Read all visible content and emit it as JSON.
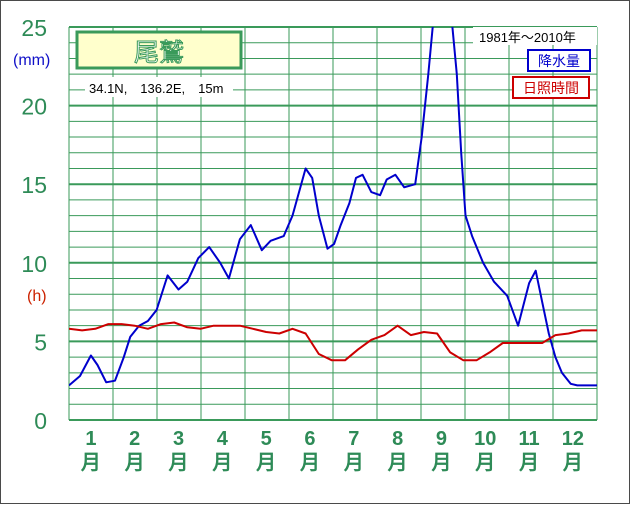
{
  "chart_data": {
    "type": "line",
    "title": "尾鷲",
    "coords_label": "34.1N,　136.2E,　15m",
    "period_label": "1981年～2010年",
    "y_units": {
      "precip": "(mm)",
      "sunshine": "(h)"
    },
    "ylim": [
      0,
      25
    ],
    "yticks": [
      "0",
      "5",
      "10",
      "15",
      "20",
      "25"
    ],
    "categories": [
      "1月",
      "2月",
      "3月",
      "4月",
      "5月",
      "6月",
      "7月",
      "8月",
      "9月",
      "10月",
      "11月",
      "12月"
    ],
    "month_numbers": [
      "1",
      "2",
      "3",
      "4",
      "5",
      "6",
      "7",
      "8",
      "9",
      "10",
      "11",
      "12"
    ],
    "month_char": "月",
    "x_range": [
      0.5,
      12.55
    ],
    "grid": true,
    "legend_position": "top-right",
    "series": [
      {
        "name": "降水量",
        "color": "#0000cc",
        "x": [
          0.5,
          0.75,
          1.0,
          1.15,
          1.35,
          1.55,
          1.75,
          1.9,
          2.1,
          2.3,
          2.5,
          2.75,
          3.0,
          3.2,
          3.45,
          3.7,
          3.95,
          4.15,
          4.4,
          4.65,
          4.9,
          5.1,
          5.4,
          5.6,
          5.9,
          6.05,
          6.2,
          6.4,
          6.55,
          6.7,
          6.9,
          7.05,
          7.2,
          7.4,
          7.6,
          7.75,
          7.95,
          8.15,
          8.4,
          8.55,
          8.7,
          8.8,
          8.9,
          9.0,
          9.15,
          9.25,
          9.35,
          9.45,
          9.55,
          9.7,
          9.95,
          10.2,
          10.5,
          10.75,
          11.0,
          11.15,
          11.3,
          11.45,
          11.6,
          11.75,
          11.95,
          12.1,
          12.3,
          12.55
        ],
        "values": [
          2.2,
          2.8,
          4.1,
          3.5,
          2.4,
          2.5,
          4.0,
          5.3,
          6.0,
          6.3,
          7.0,
          9.2,
          8.3,
          8.8,
          10.3,
          11.0,
          10.0,
          9.0,
          11.5,
          12.4,
          10.8,
          11.4,
          11.7,
          13.0,
          16.0,
          15.4,
          13.0,
          10.9,
          11.2,
          12.4,
          13.8,
          15.4,
          15.6,
          14.5,
          14.3,
          15.3,
          15.6,
          14.8,
          15.0,
          18.0,
          22.0,
          25.0,
          26.0,
          26.5,
          26.0,
          25.0,
          22.0,
          17.0,
          13.0,
          11.7,
          10.0,
          8.8,
          7.9,
          6.0,
          8.7,
          9.5,
          7.5,
          5.5,
          4.0,
          3.0,
          2.3,
          2.2,
          2.2,
          2.2
        ]
      },
      {
        "name": "日照時間",
        "color": "#cc0000",
        "x": [
          0.5,
          0.8,
          1.1,
          1.4,
          1.7,
          2.0,
          2.3,
          2.6,
          2.9,
          3.2,
          3.5,
          3.8,
          4.1,
          4.4,
          4.7,
          5.0,
          5.3,
          5.6,
          5.9,
          6.2,
          6.5,
          6.8,
          7.1,
          7.4,
          7.7,
          8.0,
          8.3,
          8.6,
          8.9,
          9.2,
          9.5,
          9.8,
          10.1,
          10.4,
          10.7,
          11.0,
          11.3,
          11.6,
          11.9,
          12.2,
          12.55
        ],
        "values": [
          5.8,
          5.7,
          5.8,
          6.1,
          6.1,
          6.0,
          5.8,
          6.1,
          6.2,
          5.9,
          5.8,
          6.0,
          6.0,
          6.0,
          5.8,
          5.6,
          5.5,
          5.8,
          5.5,
          4.2,
          3.8,
          3.8,
          4.5,
          5.1,
          5.4,
          6.0,
          5.4,
          5.6,
          5.5,
          4.3,
          3.8,
          3.8,
          4.3,
          4.9,
          4.9,
          4.9,
          4.9,
          5.4,
          5.5,
          5.7,
          5.7
        ]
      }
    ]
  }
}
